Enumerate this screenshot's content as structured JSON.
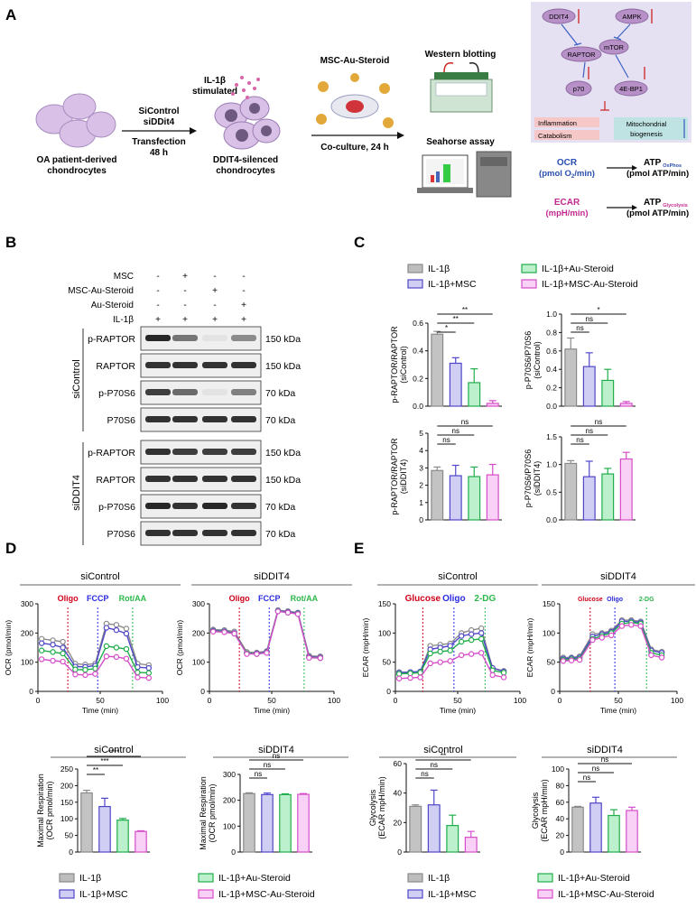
{
  "panel_labels": {
    "a": "A",
    "b": "B",
    "c": "C",
    "d": "D",
    "e": "E"
  },
  "colors": {
    "il1b": "#bdbdbd",
    "msc": "#7b72e0",
    "au": "#3ed06a",
    "mscau": "#f07ae6",
    "red": "#d0021b",
    "blue": "#2a2ae0",
    "green": "#2db84a",
    "teal": "#5fb8c4"
  },
  "schematic": {
    "cells_label_1": "OA patient-derived",
    "cells_label_2": "chondrocytes",
    "arrow1_line1": "SiControl",
    "arrow1_line2": "siDDit4",
    "arrow1_below1": "Transfection",
    "arrow1_below2": "48 h",
    "il1b_1": "IL-1β",
    "il1b_2": "stimulated",
    "silenced_1": "DDIT4-silenced",
    "silenced_2": "chondrocytes",
    "msc_label": "MSC-Au-Steroid",
    "coculture": "Co-culture, 24 h",
    "western": "Western blotting",
    "seahorse": "Seahorse assay"
  },
  "pathway": {
    "ddit4": "DDIT4",
    "ampk": "AMPK",
    "raptor": "RAPTOR",
    "mtor": "mTOR",
    "p70": "p70",
    "ebp1": "4E-BP1",
    "inflammation": "Inflammation",
    "catabolism": "Catabolism",
    "mito1": "Mitochondrial",
    "mito2": "biogenesis"
  },
  "conversion": {
    "ocr": "OCR",
    "ocr_unit_a": "(pmol O",
    "ocr_unit_sub": "2",
    "ocr_unit_b": "/min)",
    "ecar": "ECAR",
    "ecar_unit": "(mpH/min)",
    "atp": "ATP",
    "atp_ox_sub": "OxPhos",
    "atp_gly_sub": "Glycolysis",
    "atp_unit": "(pmol ATP/min)"
  },
  "blot": {
    "treatments": [
      {
        "name": "MSC",
        "values": [
          "-",
          "+",
          "-",
          "-"
        ]
      },
      {
        "name": "MSC-Au-Steroid",
        "values": [
          "-",
          "-",
          "+",
          "-"
        ]
      },
      {
        "name": "Au-Steroid",
        "values": [
          "-",
          "-",
          "-",
          "+"
        ]
      },
      {
        "name": "IL-1β",
        "values": [
          "+",
          "+",
          "+",
          "+"
        ]
      }
    ],
    "groups": [
      {
        "name": "siControl",
        "rows": [
          {
            "protein": "p-RAPTOR",
            "kda": "150 kDa",
            "intensity": [
              0.9,
              0.55,
              0.05,
              0.45
            ]
          },
          {
            "protein": "RAPTOR",
            "kda": "150 kDa",
            "intensity": [
              0.85,
              0.85,
              0.85,
              0.85
            ]
          },
          {
            "protein": "p-P70S6",
            "kda": "70 kDa",
            "intensity": [
              0.8,
              0.6,
              0.05,
              0.5
            ]
          },
          {
            "protein": "P70S6",
            "kda": "70 kDa",
            "intensity": [
              0.85,
              0.85,
              0.85,
              0.85
            ]
          }
        ]
      },
      {
        "name": "siDDIT4",
        "rows": [
          {
            "protein": "p-RAPTOR",
            "kda": "150 kDa",
            "intensity": [
              0.85,
              0.8,
              0.8,
              0.8
            ]
          },
          {
            "protein": "RAPTOR",
            "kda": "150 kDa",
            "intensity": [
              0.85,
              0.85,
              0.85,
              0.85
            ]
          },
          {
            "protein": "p-P70S6",
            "kda": "70 kDa",
            "intensity": [
              0.9,
              0.85,
              0.9,
              0.85
            ]
          },
          {
            "protein": "P70S6",
            "kda": "70 kDa",
            "intensity": [
              0.85,
              0.85,
              0.85,
              0.85
            ]
          }
        ]
      }
    ]
  },
  "legend": [
    "IL-1β",
    "IL-1β+MSC",
    "IL-1β+Au-Steroid",
    "IL-1β+MSC-Au-Steroid"
  ],
  "chart_data": [
    {
      "id": "c1",
      "type": "bar",
      "ylabel_line1": "p-RAPTOR/RAPTOR",
      "ylabel_line2": "(siControl)",
      "ylim": [
        0,
        0.6
      ],
      "yticks": [
        "0.0",
        "0.2",
        "0.4",
        "0.6"
      ],
      "values": [
        0.52,
        0.31,
        0.17,
        0.02
      ],
      "errors": [
        0.02,
        0.04,
        0.1,
        0.02
      ],
      "sig": [
        {
          "from": 0,
          "to": 1,
          "label": "*"
        },
        {
          "from": 0,
          "to": 2,
          "label": "**"
        },
        {
          "from": 0,
          "to": 3,
          "label": "**"
        }
      ]
    },
    {
      "id": "c2",
      "type": "bar",
      "ylabel_line1": "p-P70S6/P70S6",
      "ylabel_line2": "(siControl)",
      "ylim": [
        0,
        1.0
      ],
      "yticks": [
        "0.0",
        "0.2",
        "0.4",
        "0.6",
        "0.8",
        "1.0"
      ],
      "values": [
        0.62,
        0.43,
        0.28,
        0.03
      ],
      "errors": [
        0.12,
        0.15,
        0.12,
        0.02
      ],
      "sig": [
        {
          "from": 0,
          "to": 1,
          "label": "ns"
        },
        {
          "from": 0,
          "to": 2,
          "label": "ns"
        },
        {
          "from": 0,
          "to": 3,
          "label": "*"
        }
      ]
    },
    {
      "id": "c3",
      "type": "bar",
      "ylabel_line1": "p-RAPTOR/RAPTOR",
      "ylabel_line2": "(siDDIT4)",
      "ylim": [
        0,
        5
      ],
      "yticks": [
        "0",
        "1",
        "2",
        "3",
        "4",
        "5"
      ],
      "values": [
        2.85,
        2.55,
        2.5,
        2.6
      ],
      "errors": [
        0.2,
        0.6,
        0.55,
        0.6
      ],
      "sig": [
        {
          "from": 0,
          "to": 1,
          "label": "ns"
        },
        {
          "from": 0,
          "to": 2,
          "label": "ns"
        },
        {
          "from": 0,
          "to": 3,
          "label": "ns"
        }
      ]
    },
    {
      "id": "c4",
      "type": "bar",
      "ylabel_line1": "p-P70S6/P70S6",
      "ylabel_line2": "(siDDIT4)",
      "ylim": [
        0,
        1.5
      ],
      "yticks": [
        "0.0",
        "0.5",
        "1.0",
        "1.5"
      ],
      "values": [
        1.02,
        0.78,
        0.83,
        1.1
      ],
      "errors": [
        0.05,
        0.28,
        0.1,
        0.12
      ],
      "sig": [
        {
          "from": 0,
          "to": 1,
          "label": "ns"
        },
        {
          "from": 0,
          "to": 2,
          "label": "ns"
        },
        {
          "from": 0,
          "to": 3,
          "label": "ns"
        }
      ]
    },
    {
      "id": "d1",
      "type": "line",
      "title": "siControl",
      "ylabel": "OCR (pmol/min)",
      "xlabel": "Time (min)",
      "xlim": [
        0,
        100
      ],
      "ylim": [
        0,
        300
      ],
      "xticks": [
        "0",
        "50",
        "100"
      ],
      "yticks": [
        "0",
        "100",
        "200",
        "300"
      ],
      "events": [
        {
          "x": 24,
          "label": "Oligo",
          "color": "red"
        },
        {
          "x": 48,
          "label": "FCCP",
          "color": "blue"
        },
        {
          "x": 76,
          "label": "Rot/AA",
          "color": "green"
        }
      ],
      "x": [
        3,
        12,
        20,
        30,
        38,
        46,
        55,
        63,
        71,
        80,
        89
      ],
      "series": [
        {
          "values": [
            180,
            175,
            170,
            95,
            92,
            95,
            232,
            228,
            215,
            95,
            90
          ]
        },
        {
          "values": [
            165,
            160,
            150,
            85,
            84,
            88,
            218,
            210,
            198,
            83,
            80
          ]
        },
        {
          "values": [
            140,
            135,
            130,
            75,
            74,
            78,
            155,
            150,
            145,
            65,
            63
          ]
        },
        {
          "values": [
            110,
            105,
            102,
            58,
            56,
            60,
            120,
            118,
            112,
            48,
            46
          ]
        }
      ]
    },
    {
      "id": "d2",
      "type": "line",
      "title": "siDDIT4",
      "ylabel": "OCR (pmol/min)",
      "xlabel": "Time (min)",
      "xlim": [
        0,
        100
      ],
      "ylim": [
        0,
        300
      ],
      "xticks": [
        "0",
        "50",
        "100"
      ],
      "yticks": [
        "0",
        "100",
        "200",
        "300"
      ],
      "events": [
        {
          "x": 24,
          "label": "Oligo",
          "color": "red"
        },
        {
          "x": 48,
          "label": "FCCP",
          "color": "blue"
        },
        {
          "x": 76,
          "label": "Rot/AA",
          "color": "green"
        }
      ],
      "x": [
        3,
        12,
        20,
        30,
        38,
        46,
        55,
        63,
        71,
        80,
        89
      ],
      "series": [
        {
          "values": [
            212,
            210,
            205,
            135,
            133,
            138,
            278,
            275,
            270,
            122,
            120
          ]
        },
        {
          "values": [
            208,
            206,
            200,
            130,
            130,
            135,
            276,
            272,
            268,
            118,
            116
          ]
        },
        {
          "values": [
            206,
            204,
            198,
            130,
            128,
            133,
            275,
            270,
            266,
            116,
            114
          ]
        },
        {
          "values": [
            205,
            203,
            198,
            128,
            128,
            132,
            274,
            270,
            265,
            115,
            114
          ]
        }
      ]
    },
    {
      "id": "e1",
      "type": "line",
      "title": "siControl",
      "ylabel": "ECAR (mpH/min)",
      "xlabel": "Time (min)",
      "xlim": [
        0,
        100
      ],
      "ylim": [
        0,
        150
      ],
      "xticks": [
        "0",
        "50",
        "100"
      ],
      "yticks": [
        "0",
        "50",
        "100",
        "150"
      ],
      "events": [
        {
          "x": 22,
          "label": "Glucose",
          "color": "red"
        },
        {
          "x": 47,
          "label": "Oligo",
          "color": "blue"
        },
        {
          "x": 72,
          "label": "2-DG",
          "color": "green"
        }
      ],
      "x": [
        3,
        12,
        20,
        28,
        36,
        44,
        53,
        61,
        69,
        78,
        87
      ],
      "series": [
        {
          "values": [
            33,
            33,
            34,
            78,
            80,
            82,
            100,
            105,
            108,
            40,
            35
          ]
        },
        {
          "values": [
            32,
            33,
            34,
            72,
            75,
            78,
            95,
            98,
            100,
            40,
            34
          ]
        },
        {
          "values": [
            30,
            31,
            32,
            65,
            68,
            70,
            85,
            88,
            90,
            36,
            32
          ]
        },
        {
          "values": [
            22,
            23,
            24,
            48,
            50,
            52,
            62,
            64,
            66,
            28,
            24
          ]
        }
      ]
    },
    {
      "id": "e2",
      "type": "line",
      "title": "siDDIT4",
      "ylabel": "ECAR (mpH/min)",
      "xlabel": "Time (min)",
      "xlim": [
        0,
        100
      ],
      "ylim": [
        0,
        150
      ],
      "xticks": [
        "0",
        "50",
        "100"
      ],
      "yticks": [
        "0",
        "50",
        "100",
        "150"
      ],
      "events": [
        {
          "x": 26,
          "label": "Glucose",
          "color": "red"
        },
        {
          "x": 47,
          "label": "Oligo",
          "color": "blue"
        },
        {
          "x": 74,
          "label": "2-DG",
          "color": "green"
        }
      ],
      "x": [
        3,
        10,
        17,
        28,
        36,
        44,
        53,
        61,
        69,
        78,
        87
      ],
      "series": [
        {
          "values": [
            58,
            58,
            60,
            98,
            100,
            104,
            122,
            122,
            120,
            72,
            68
          ]
        },
        {
          "values": [
            56,
            57,
            58,
            94,
            98,
            102,
            120,
            120,
            118,
            70,
            66
          ]
        },
        {
          "values": [
            54,
            55,
            56,
            90,
            95,
            100,
            116,
            118,
            116,
            66,
            62
          ]
        },
        {
          "values": [
            52,
            53,
            54,
            88,
            92,
            96,
            112,
            114,
            112,
            62,
            58
          ]
        }
      ]
    },
    {
      "id": "f1",
      "type": "bar",
      "title": "siControl",
      "ylabel_line1": "Maximal Respiration",
      "ylabel_line2": "(OCR pmol/min)",
      "ylim": [
        0,
        250
      ],
      "yticks": [
        "0",
        "50",
        "100",
        "150",
        "200",
        "250"
      ],
      "values": [
        178,
        137,
        96,
        62
      ],
      "errors": [
        8,
        25,
        5,
        2
      ],
      "sig": [
        {
          "from": 0,
          "to": 1,
          "label": "**"
        },
        {
          "from": 0,
          "to": 2,
          "label": "***"
        },
        {
          "from": 0,
          "to": 3,
          "label": "****"
        }
      ]
    },
    {
      "id": "f2",
      "type": "bar",
      "title": "siDDIT4",
      "ylabel_line1": "Maximal Respiration",
      "ylabel_line2": "(OCR pmol/min)",
      "ylim": [
        0,
        300
      ],
      "yticks": [
        "0",
        "100",
        "200",
        "300"
      ],
      "values": [
        226,
        222,
        222,
        223
      ],
      "errors": [
        3,
        6,
        3,
        3
      ],
      "sig": [
        {
          "from": 0,
          "to": 1,
          "label": "ns"
        },
        {
          "from": 0,
          "to": 2,
          "label": "ns"
        },
        {
          "from": 0,
          "to": 3,
          "label": "ns"
        }
      ]
    },
    {
      "id": "g1",
      "type": "bar",
      "title": "siControl",
      "ylabel_line1": "Glycolysis",
      "ylabel_line2": "(ECAR mpH/min)",
      "ylim": [
        0,
        60
      ],
      "yticks": [
        "0",
        "20",
        "40",
        "60"
      ],
      "values": [
        31,
        32,
        18,
        10
      ],
      "errors": [
        1,
        10,
        7,
        4
      ],
      "sig": [
        {
          "from": 0,
          "to": 1,
          "label": "ns"
        },
        {
          "from": 0,
          "to": 2,
          "label": "ns"
        },
        {
          "from": 0,
          "to": 3,
          "label": "**"
        }
      ]
    },
    {
      "id": "g2",
      "type": "bar",
      "title": "siDDIT4",
      "ylabel_line1": "Glycolysis",
      "ylabel_line2": "(ECAR mpH/min)",
      "ylim": [
        0,
        100
      ],
      "yticks": [
        "0",
        "20",
        "40",
        "60",
        "80",
        "100"
      ],
      "values": [
        54,
        59,
        44,
        50
      ],
      "errors": [
        1,
        7,
        7,
        4
      ],
      "sig": [
        {
          "from": 0,
          "to": 1,
          "label": "ns"
        },
        {
          "from": 0,
          "to": 2,
          "label": "ns"
        },
        {
          "from": 0,
          "to": 3,
          "label": "ns"
        }
      ]
    }
  ]
}
